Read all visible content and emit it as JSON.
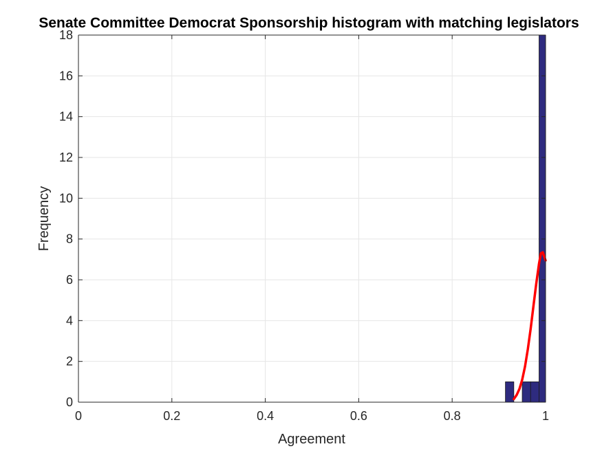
{
  "chart_data": {
    "type": "bar",
    "title": "Senate Committee Democrat Sponsorship histogram with matching legislators",
    "xlabel": "Agreement",
    "ylabel": "Frequency",
    "xlim": [
      0,
      1
    ],
    "ylim": [
      0,
      18
    ],
    "grid": true,
    "x_ticks": [
      0,
      0.2,
      0.4,
      0.6,
      0.8,
      1
    ],
    "x_tick_labels": [
      "0",
      "0.2",
      "0.4",
      "0.6",
      "0.8",
      "1"
    ],
    "y_ticks": [
      0,
      2,
      4,
      6,
      8,
      10,
      12,
      14,
      16,
      18
    ],
    "y_tick_labels": [
      "0",
      "2",
      "4",
      "6",
      "8",
      "10",
      "12",
      "14",
      "16",
      "18"
    ],
    "bar_color": "#2e2b7f",
    "bins": [
      {
        "x_start": 0.914,
        "x_end": 0.932,
        "count": 1
      },
      {
        "x_start": 0.932,
        "x_end": 0.95,
        "count": 0
      },
      {
        "x_start": 0.95,
        "x_end": 0.968,
        "count": 1
      },
      {
        "x_start": 0.968,
        "x_end": 0.986,
        "count": 1
      },
      {
        "x_start": 0.986,
        "x_end": 1.004,
        "count": 18
      }
    ],
    "fit_curve": {
      "color": "#ff0000",
      "x": [
        0.932,
        0.938,
        0.944,
        0.95,
        0.956,
        0.962,
        0.968,
        0.974,
        0.98,
        0.986,
        0.99,
        0.994,
        1.0
      ],
      "y": [
        0.15,
        0.35,
        0.65,
        1.1,
        1.75,
        2.6,
        3.6,
        4.7,
        5.8,
        6.8,
        7.3,
        7.35,
        6.95
      ]
    }
  }
}
